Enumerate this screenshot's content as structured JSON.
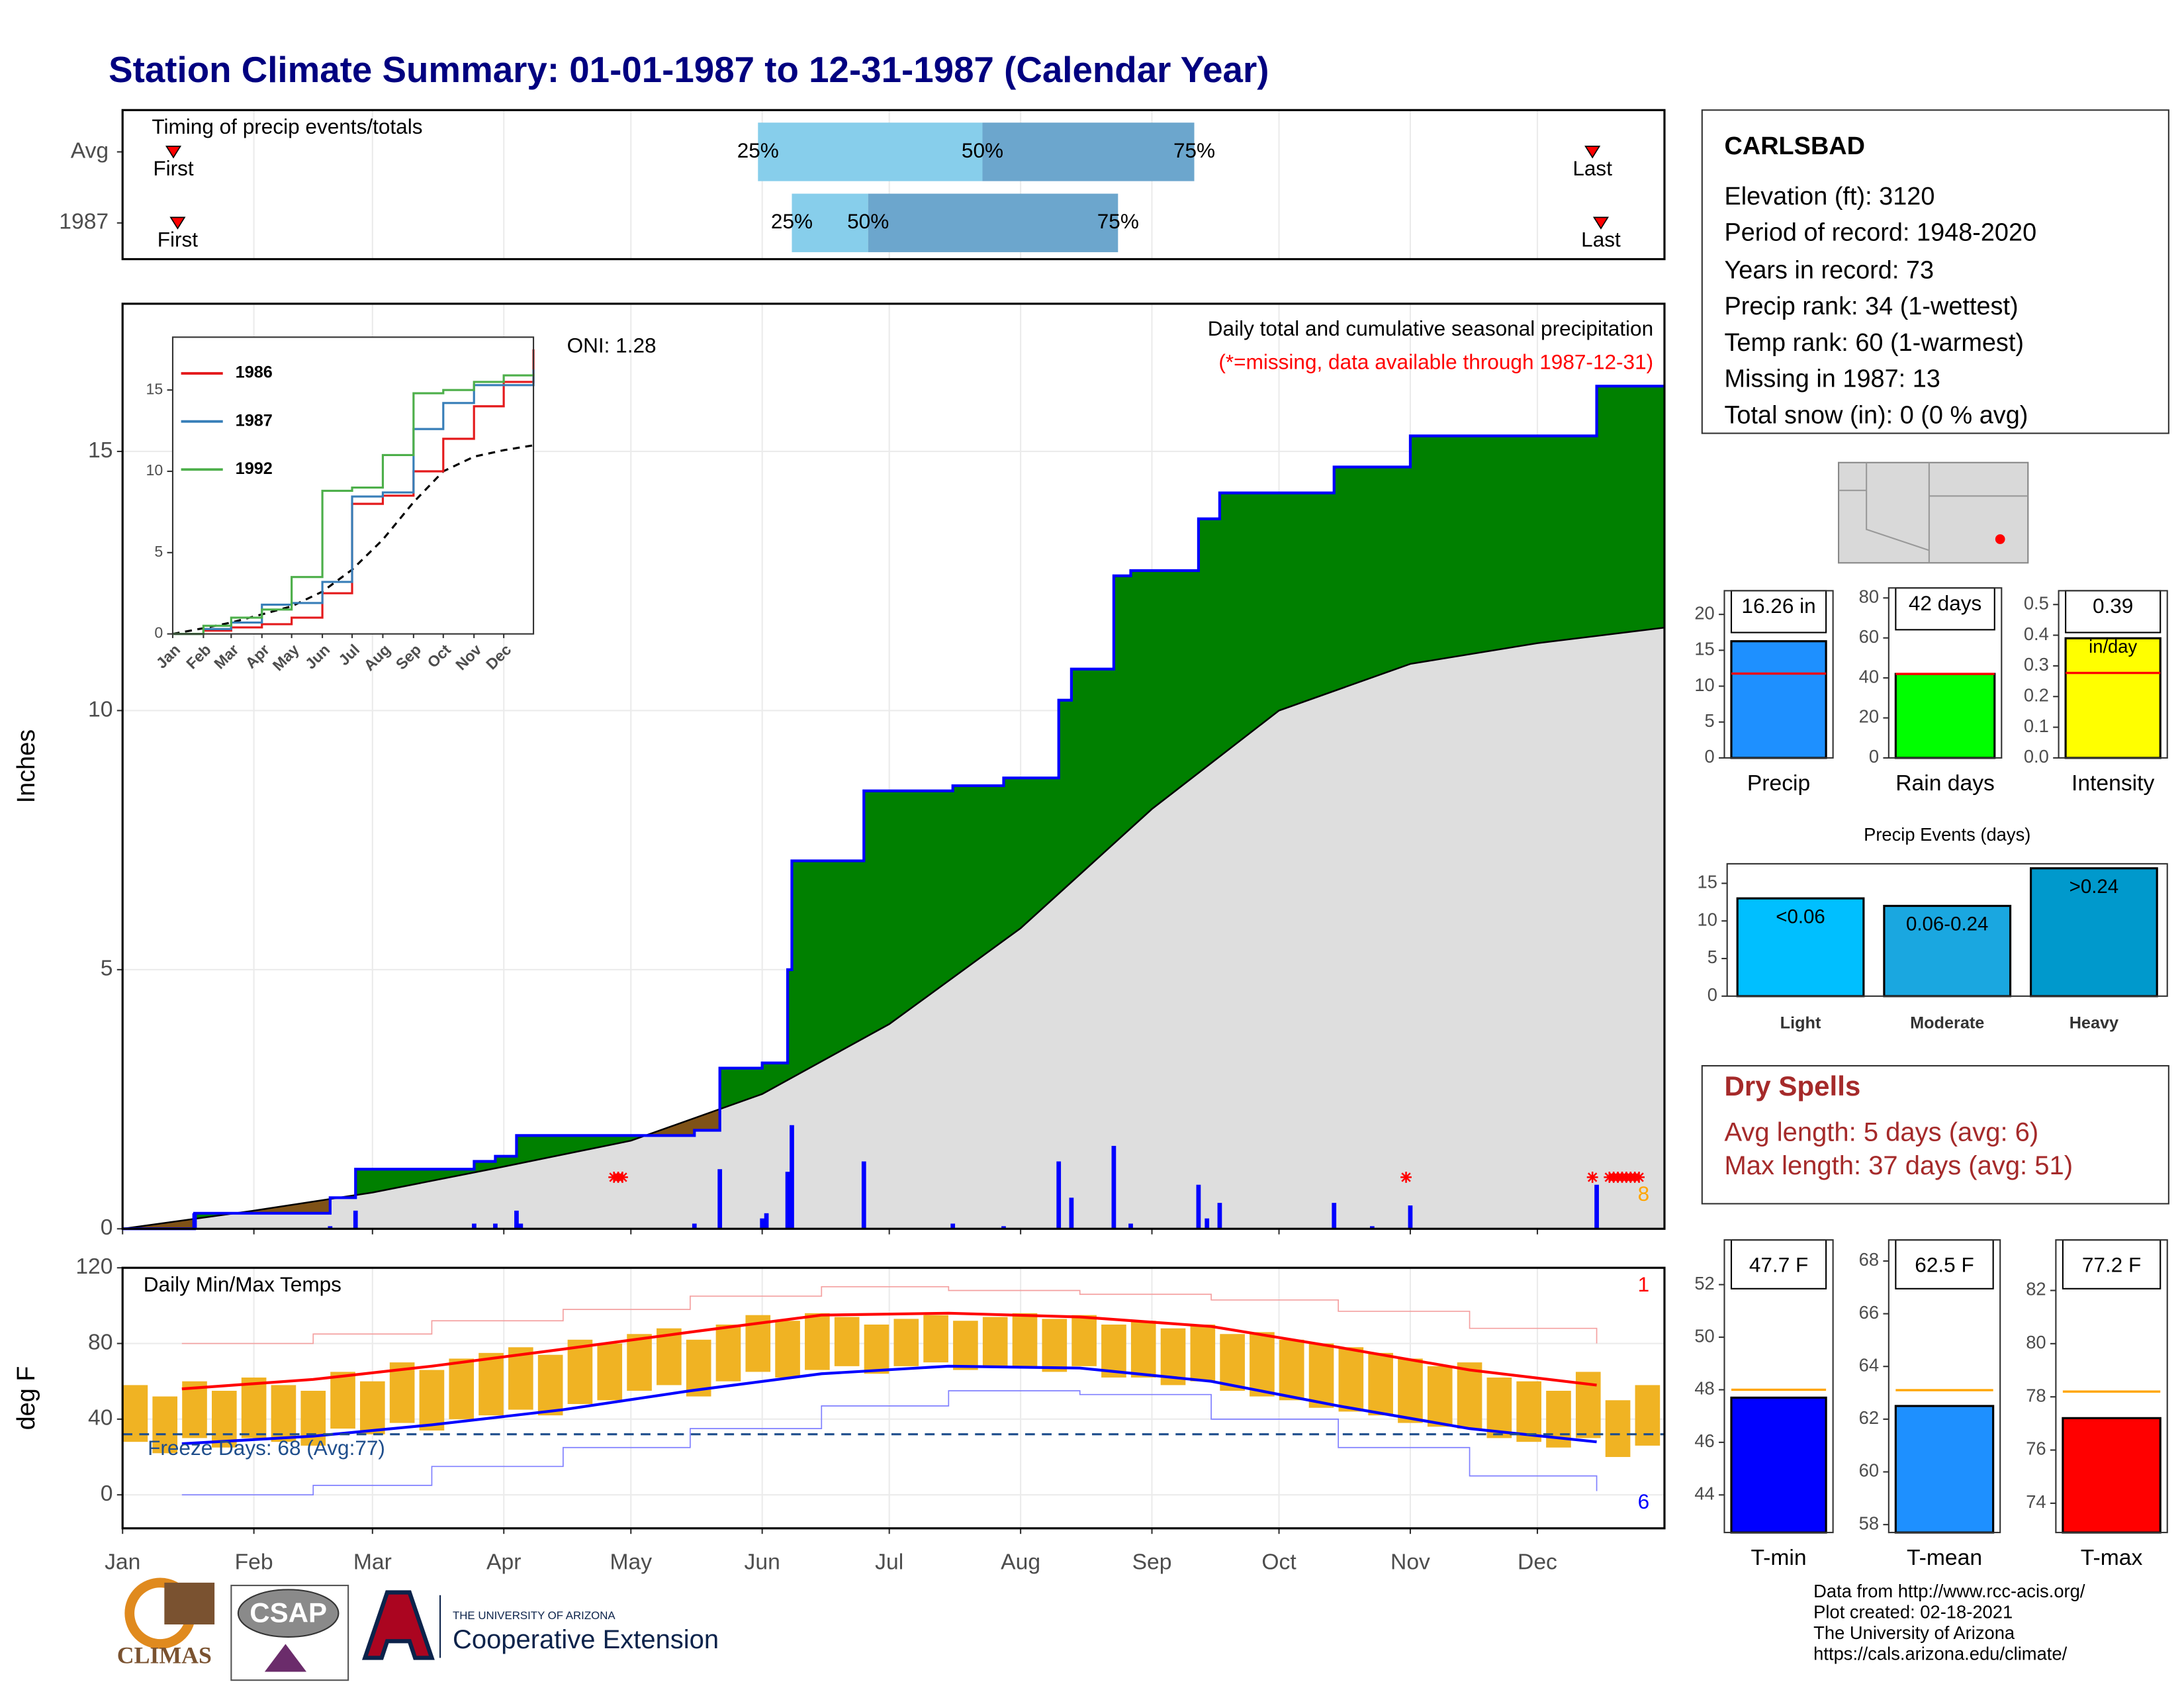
{
  "title": "Station Climate Summary: 01-01-1987 to 12-31-1987 (Calendar Year)",
  "station": {
    "name": "CARLSBAD",
    "lines": [
      "Elevation (ft): 3120",
      "Period of record: 1948-2020",
      "Years in record: 73",
      "Precip rank: 34 (1-wettest)",
      "Temp rank: 60 (1-warmest)",
      "Missing in 1987: 13",
      "Total snow (in): 0 (0 % avg)"
    ]
  },
  "dry_spells": {
    "title": "Dry Spells",
    "lines": [
      "Avg length: 5 days (avg: 6)",
      "Max length: 37 days (avg: 51)"
    ]
  },
  "footer": [
    "Data from http://www.rcc-acis.org/",
    "Plot created: 02-18-2021",
    "The University of Arizona",
    "https://cals.arizona.edu/climate/"
  ],
  "logos": {
    "climas": "CLIMAS",
    "csap": "CSAP",
    "university": "THE UNIVERSITY OF ARIZONA",
    "extension": "Cooperative Extension"
  },
  "chart_data": [
    {
      "type": "timeline",
      "title": "Timing of precip events/totals",
      "categories": [
        "Avg",
        "1987"
      ],
      "first": [
        13,
        14
      ],
      "q25": [
        151,
        159
      ],
      "q50": [
        204,
        177
      ],
      "q75": [
        254,
        236
      ],
      "last": [
        348,
        350
      ],
      "labels": {
        "first": "First",
        "last": "Last",
        "q25": "25%",
        "q50": "50%",
        "q75": "75%"
      },
      "colors": {
        "lower": "#87ceeb",
        "upper": "#6ca6cd",
        "marker": "#ff0000"
      },
      "xlim": [
        1,
        365
      ]
    },
    {
      "type": "area",
      "title": "Daily total and cumulative seasonal precipitation",
      "subtitle": "(*=missing, data available through 1987-12-31)",
      "annotation": "ONI: 1.28",
      "ylabel": "Inches",
      "note": "8",
      "xlim": [
        1,
        365
      ],
      "ylim": [
        0,
        17.85
      ],
      "yticks": [
        0,
        5,
        10,
        15
      ],
      "grid": true,
      "observed": {
        "x": [
          1,
          18,
          50,
          56,
          84,
          89,
          94,
          136,
          142,
          152,
          158,
          159,
          176,
          197,
          209,
          222,
          225,
          235,
          239,
          255,
          260,
          287,
          305,
          349,
          365
        ],
        "values": [
          0,
          0.3,
          0.6,
          1.15,
          1.3,
          1.4,
          1.8,
          1.9,
          3.1,
          3.2,
          5.0,
          7.1,
          8.45,
          8.55,
          8.7,
          10.2,
          10.8,
          12.6,
          12.7,
          13.7,
          14.2,
          14.7,
          15.3,
          16.26,
          16.26
        ],
        "color": "#0000ff"
      },
      "average": {
        "x": [
          1,
          32,
          60,
          91,
          121,
          152,
          182,
          213,
          244,
          274,
          305,
          335,
          365
        ],
        "values": [
          0,
          0.35,
          0.7,
          1.2,
          1.7,
          2.6,
          3.95,
          5.8,
          8.1,
          10.0,
          10.9,
          11.3,
          11.6
        ],
        "color": "#dedede"
      },
      "daily": {
        "x": [
          18,
          50,
          56,
          84,
          89,
          94,
          95,
          136,
          142,
          152,
          153,
          158,
          159,
          176,
          197,
          209,
          222,
          225,
          235,
          239,
          255,
          257,
          260,
          287,
          296,
          305,
          349
        ],
        "values": [
          0.3,
          0.05,
          0.35,
          0.1,
          0.1,
          0.35,
          0.1,
          0.1,
          1.15,
          0.2,
          0.3,
          1.1,
          2.0,
          1.3,
          0.1,
          0.05,
          1.3,
          0.6,
          1.6,
          0.1,
          0.85,
          0.2,
          0.5,
          0.5,
          0.05,
          0.45,
          0.85
        ],
        "color": "#0000ff"
      },
      "missing_x": [
        117,
        118,
        119,
        304,
        348,
        352,
        353,
        354,
        355,
        356,
        357,
        358,
        359
      ],
      "surplus_color": "#008000",
      "deficit_color": "#7f5217"
    },
    {
      "type": "line",
      "xlim": [
        1,
        365
      ],
      "ylim": [
        0,
        18.25
      ],
      "yticks": [
        0,
        5,
        10,
        15
      ],
      "xticks": [
        {
          "value": 1,
          "label": "Jan"
        },
        {
          "value": 32,
          "label": "Feb"
        },
        {
          "value": 60,
          "label": "Mar"
        },
        {
          "value": 91,
          "label": "Apr"
        },
        {
          "value": 121,
          "label": "May"
        },
        {
          "value": 152,
          "label": "Jun"
        },
        {
          "value": 182,
          "label": "Jul"
        },
        {
          "value": 213,
          "label": "Aug"
        },
        {
          "value": 244,
          "label": "Sep"
        },
        {
          "value": 274,
          "label": "Oct"
        },
        {
          "value": 305,
          "label": "Nov"
        },
        {
          "value": 335,
          "label": "Dec"
        }
      ],
      "x": [
        1,
        32,
        60,
        91,
        121,
        152,
        182,
        213,
        244,
        274,
        305,
        335,
        365
      ],
      "series": [
        {
          "name": "1986",
          "color": "#e41a1c",
          "values": [
            0,
            0.2,
            0.4,
            0.6,
            1.0,
            2.5,
            8.0,
            8.5,
            10.0,
            12.0,
            14.0,
            15.5,
            17.5
          ]
        },
        {
          "name": "1987",
          "color": "#377eb8",
          "values": [
            0,
            0.3,
            0.7,
            1.8,
            1.9,
            3.2,
            8.45,
            8.7,
            12.6,
            14.2,
            15.3,
            15.3,
            16.26
          ]
        },
        {
          "name": "1992",
          "color": "#4daf4a",
          "values": [
            0,
            0.5,
            1.0,
            1.5,
            3.5,
            8.8,
            9.0,
            11.0,
            14.8,
            15.0,
            15.5,
            15.9,
            16.0
          ]
        }
      ],
      "average": {
        "values": [
          0,
          0.35,
          0.7,
          1.2,
          1.7,
          2.6,
          3.95,
          5.8,
          8.1,
          10.0,
          10.9,
          11.3,
          11.6
        ],
        "color": "#000000"
      }
    },
    {
      "type": "bar",
      "categories": [
        "Precip"
      ],
      "values": [
        16.26
      ],
      "value_labels": [
        "16.26 in"
      ],
      "average": 11.75,
      "color": "#1e90ff",
      "average_color": "#ff0000",
      "ylim": [
        0,
        23.3
      ],
      "yticks": [
        0,
        5,
        10,
        15,
        20
      ]
    },
    {
      "type": "bar",
      "categories": [
        "Rain days"
      ],
      "values": [
        42
      ],
      "value_labels": [
        "42 days"
      ],
      "average": 42,
      "color": "#00ff00",
      "average_color": "#ff0000",
      "ylim": [
        0,
        85
      ],
      "yticks": [
        0,
        20,
        40,
        60,
        80
      ]
    },
    {
      "type": "bar",
      "categories": [
        "Intensity"
      ],
      "values": [
        0.39
      ],
      "value_labels": [
        "0.39"
      ],
      "unit": "in/day",
      "average": 0.277,
      "color": "#ffff00",
      "average_color": "#ff0000",
      "ylim": [
        0,
        0.545
      ],
      "yticks": [
        {
          "value": 0,
          "label": "0.0"
        },
        0.1,
        0.2,
        0.3,
        0.4,
        0.5
      ]
    },
    {
      "type": "bar",
      "title": "Precip Events (days)",
      "categories": [
        "Light",
        "Moderate",
        "Heavy"
      ],
      "values": [
        13,
        12,
        17
      ],
      "bar_labels": [
        "<0.06",
        "0.06-0.24",
        ">0.24"
      ],
      "colors": [
        "#00bfff",
        "#1aa7e0",
        "#0099cc"
      ],
      "ylim": [
        0,
        17.6
      ],
      "yticks": [
        0,
        5,
        10,
        15
      ]
    },
    {
      "type": "range",
      "title": "Daily Min/Max Temps",
      "annotation": "Freeze Days: 68 (Avg:77)",
      "ylabel": "deg F",
      "record_highs": 1,
      "record_lows": 6,
      "xlim": [
        1,
        365
      ],
      "ylim": [
        -17.7,
        120
      ],
      "yticks": [
        0,
        40,
        80,
        120
      ],
      "xticks": [
        {
          "value": 1,
          "label": "Jan"
        },
        {
          "value": 32,
          "label": "Feb"
        },
        {
          "value": 60,
          "label": "Mar"
        },
        {
          "value": 91,
          "label": "Apr"
        },
        {
          "value": 121,
          "label": "May"
        },
        {
          "value": 152,
          "label": "Jun"
        },
        {
          "value": 182,
          "label": "Jul"
        },
        {
          "value": 213,
          "label": "Aug"
        },
        {
          "value": 244,
          "label": "Sep"
        },
        {
          "value": 274,
          "label": "Oct"
        },
        {
          "value": 305,
          "label": "Nov"
        },
        {
          "value": 335,
          "label": "Dec"
        }
      ],
      "freeze": 32,
      "color": "#f0b323",
      "x": [
        4,
        11,
        18,
        25,
        32,
        39,
        46,
        53,
        60,
        67,
        74,
        81,
        88,
        95,
        102,
        109,
        116,
        123,
        130,
        137,
        144,
        151,
        158,
        165,
        172,
        179,
        186,
        193,
        200,
        207,
        214,
        221,
        228,
        235,
        242,
        249,
        256,
        263,
        270,
        277,
        284,
        291,
        298,
        305,
        312,
        319,
        326,
        333,
        340,
        347,
        354,
        361
      ],
      "tmax": [
        58,
        52,
        60,
        55,
        62,
        58,
        55,
        65,
        60,
        70,
        66,
        72,
        75,
        78,
        74,
        82,
        80,
        85,
        88,
        82,
        90,
        95,
        92,
        96,
        94,
        90,
        93,
        95,
        92,
        94,
        96,
        93,
        95,
        90,
        92,
        88,
        90,
        85,
        86,
        82,
        80,
        78,
        75,
        72,
        68,
        70,
        62,
        60,
        55,
        65,
        50,
        58
      ],
      "tmin": [
        28,
        22,
        30,
        25,
        30,
        28,
        26,
        35,
        32,
        38,
        34,
        40,
        42,
        45,
        42,
        48,
        50,
        55,
        58,
        52,
        60,
        65,
        62,
        66,
        68,
        64,
        68,
        70,
        66,
        68,
        67,
        65,
        68,
        62,
        62,
        58,
        60,
        55,
        52,
        50,
        46,
        44,
        42,
        38,
        36,
        35,
        30,
        28,
        25,
        30,
        20,
        26
      ],
      "normals": {
        "x": [
          15,
          46,
          74,
          105,
          135,
          166,
          196,
          227,
          258,
          288,
          319,
          349
        ],
        "max": [
          56,
          61,
          68,
          77,
          86,
          95,
          96,
          94,
          89,
          78,
          66,
          58
        ],
        "min": [
          27,
          31,
          37,
          45,
          55,
          64,
          68,
          67,
          60,
          47,
          35,
          28
        ],
        "record_max": [
          80,
          85,
          92,
          98,
          105,
          110,
          108,
          106,
          103,
          97,
          88,
          80
        ],
        "record_min": [
          0,
          5,
          15,
          25,
          35,
          47,
          55,
          53,
          40,
          25,
          10,
          2
        ],
        "max_color": "#ff0000",
        "min_color": "#0000ff"
      }
    },
    {
      "type": "bar",
      "categories": [
        "T-min"
      ],
      "values": [
        47.7
      ],
      "value_labels": [
        "47.7 F"
      ],
      "average": 48.0,
      "color": "#0000ff",
      "average_color": "#ffa500",
      "ylim": [
        42.57,
        53.7
      ],
      "yticks": [
        44,
        46,
        48,
        50,
        52
      ]
    },
    {
      "type": "bar",
      "categories": [
        "T-mean"
      ],
      "values": [
        62.5
      ],
      "value_labels": [
        "62.5 F"
      ],
      "average": 63.1,
      "color": "#1e90ff",
      "average_color": "#ffa500",
      "ylim": [
        57.7,
        68.8
      ],
      "yticks": [
        58,
        60,
        62,
        64,
        66,
        68
      ]
    },
    {
      "type": "bar",
      "categories": [
        "T-max"
      ],
      "values": [
        77.2
      ],
      "value_labels": [
        "77.2 F"
      ],
      "average": 78.2,
      "color": "#ff0000",
      "average_color": "#ffa500",
      "ylim": [
        72.9,
        83.9
      ],
      "yticks": [
        74,
        76,
        78,
        80,
        82
      ]
    }
  ]
}
